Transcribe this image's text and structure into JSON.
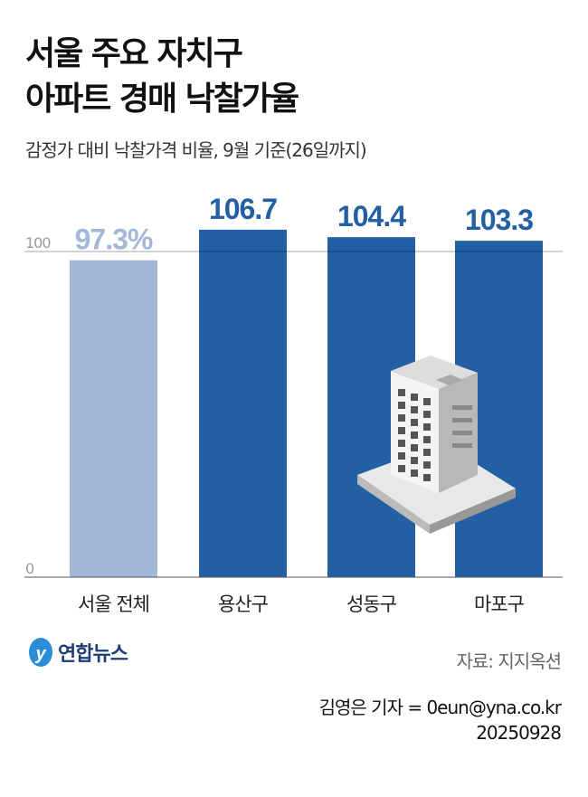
{
  "title_lines": [
    "서울 주요 자치구",
    "아파트 경매 낙찰가율"
  ],
  "subtitle": "감정가 대비 낙찰가격 비율, 9월 기준(26일까지)",
  "chart_data": {
    "type": "bar",
    "categories": [
      "서울 전체",
      "용산구",
      "성동구",
      "마포구"
    ],
    "values": [
      97.3,
      106.7,
      104.4,
      103.3
    ],
    "value_labels": [
      "97.3%",
      "106.7",
      "104.4",
      "103.3"
    ],
    "ylim": [
      0,
      110
    ],
    "yticks": [
      0,
      100
    ],
    "ytick_labels": [
      "0",
      "100"
    ],
    "unit": "%",
    "colors": [
      "#a3b8d8",
      "#2360a3",
      "#2360a3",
      "#2360a3"
    ]
  },
  "logo": "연합뉴스",
  "source": "자료: 지지옥션",
  "credit": "김영은 기자 = 0eun@yna.co.kr",
  "date": "20250928"
}
